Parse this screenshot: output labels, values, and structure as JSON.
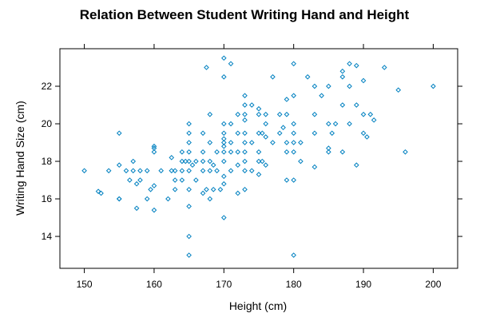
{
  "chart_data": {
    "type": "scatter",
    "title": "Relation Between Student Writing Hand and Height",
    "xlabel": "Height (cm)",
    "ylabel": "Writing Hand Size (cm)",
    "xlim": [
      146.5,
      203.5
    ],
    "ylim": [
      12.3,
      24.0
    ],
    "xticks": [
      150,
      160,
      170,
      180,
      190,
      200
    ],
    "yticks": [
      14,
      16,
      18,
      20,
      22
    ],
    "grid": false,
    "marker": "open-diamond",
    "marker_color": "#0080c0",
    "series": [
      {
        "points": [
          [
            150,
            17.5
          ],
          [
            152,
            16.4
          ],
          [
            152.4,
            16.3
          ],
          [
            153.5,
            17.5
          ],
          [
            155,
            16
          ],
          [
            155,
            16
          ],
          [
            155,
            17.8
          ],
          [
            155,
            19.5
          ],
          [
            156,
            17.5
          ],
          [
            156.5,
            17
          ],
          [
            157,
            17.5
          ],
          [
            157,
            18
          ],
          [
            157.5,
            15.5
          ],
          [
            157.5,
            16.8
          ],
          [
            158,
            17
          ],
          [
            158,
            17.5
          ],
          [
            159,
            16
          ],
          [
            159,
            17.5
          ],
          [
            159.5,
            16.5
          ],
          [
            160,
            18.5
          ],
          [
            160,
            18.7
          ],
          [
            160,
            18.8
          ],
          [
            160,
            15.4
          ],
          [
            160,
            16.7
          ],
          [
            161,
            17.5
          ],
          [
            162,
            16
          ],
          [
            162.5,
            17.5
          ],
          [
            162.5,
            18.2
          ],
          [
            163,
            17.5
          ],
          [
            163,
            17
          ],
          [
            163,
            16.5
          ],
          [
            164,
            17.5
          ],
          [
            164,
            17
          ],
          [
            164,
            18
          ],
          [
            164,
            18.5
          ],
          [
            164.5,
            18
          ],
          [
            165,
            13
          ],
          [
            165,
            14
          ],
          [
            165,
            15.6
          ],
          [
            165,
            16.5
          ],
          [
            165,
            17.5
          ],
          [
            165,
            18
          ],
          [
            165,
            18.5
          ],
          [
            165,
            19
          ],
          [
            165,
            19.5
          ],
          [
            165,
            20
          ],
          [
            165.5,
            17.8
          ],
          [
            166,
            17
          ],
          [
            166,
            18
          ],
          [
            167,
            16.3
          ],
          [
            167,
            17.5
          ],
          [
            167,
            18
          ],
          [
            167,
            18.5
          ],
          [
            167,
            19.5
          ],
          [
            167.5,
            16.5
          ],
          [
            167.5,
            23
          ],
          [
            168,
            16
          ],
          [
            168,
            17.5
          ],
          [
            168,
            18
          ],
          [
            168,
            19
          ],
          [
            168,
            20.5
          ],
          [
            168.5,
            16.5
          ],
          [
            168.5,
            17.8
          ],
          [
            169,
            17.5
          ],
          [
            169,
            18.5
          ],
          [
            169.5,
            16.5
          ],
          [
            170,
            15
          ],
          [
            170,
            16.8
          ],
          [
            170,
            17.2
          ],
          [
            170,
            18
          ],
          [
            170,
            18.5
          ],
          [
            170,
            18.8
          ],
          [
            170,
            19
          ],
          [
            170,
            19.2
          ],
          [
            170,
            19.5
          ],
          [
            170,
            20
          ],
          [
            170,
            22.5
          ],
          [
            170,
            23.5
          ],
          [
            171,
            17.5
          ],
          [
            171,
            18.5
          ],
          [
            171,
            19
          ],
          [
            171,
            20
          ],
          [
            171,
            23.2
          ],
          [
            172,
            16.3
          ],
          [
            172,
            17.8
          ],
          [
            172,
            18.5
          ],
          [
            172,
            19.5
          ],
          [
            172,
            20.5
          ],
          [
            173,
            16.5
          ],
          [
            173,
            17.5
          ],
          [
            173,
            18
          ],
          [
            173,
            18.5
          ],
          [
            173,
            19
          ],
          [
            173,
            19.5
          ],
          [
            173,
            20.2
          ],
          [
            173,
            20.5
          ],
          [
            173,
            21
          ],
          [
            173,
            21.5
          ],
          [
            174,
            17.5
          ],
          [
            174,
            19
          ],
          [
            174,
            21
          ],
          [
            175,
            17.3
          ],
          [
            175,
            18
          ],
          [
            175,
            18.5
          ],
          [
            175,
            19.5
          ],
          [
            175,
            20.5
          ],
          [
            175,
            20.8
          ],
          [
            175.5,
            18
          ],
          [
            175.5,
            19.5
          ],
          [
            176,
            17.8
          ],
          [
            176,
            19.3
          ],
          [
            176,
            20
          ],
          [
            176,
            20.5
          ],
          [
            177,
            19
          ],
          [
            177,
            22.5
          ],
          [
            178,
            19.5
          ],
          [
            178,
            20.5
          ],
          [
            178.5,
            19.8
          ],
          [
            179,
            17
          ],
          [
            179,
            18.5
          ],
          [
            179,
            19
          ],
          [
            179,
            20.5
          ],
          [
            179,
            21.3
          ],
          [
            180,
            13
          ],
          [
            180,
            17
          ],
          [
            180,
            18.5
          ],
          [
            180,
            19
          ],
          [
            180,
            19.5
          ],
          [
            180,
            20
          ],
          [
            180,
            21.5
          ],
          [
            180,
            23.2
          ],
          [
            181,
            18
          ],
          [
            181,
            19
          ],
          [
            182,
            22.5
          ],
          [
            183,
            17.7
          ],
          [
            183,
            19.5
          ],
          [
            183,
            20.5
          ],
          [
            183,
            22
          ],
          [
            184,
            21.5
          ],
          [
            185,
            18.5
          ],
          [
            185,
            18.7
          ],
          [
            185,
            20
          ],
          [
            185,
            22
          ],
          [
            185.5,
            19.5
          ],
          [
            186,
            20
          ],
          [
            187,
            18.5
          ],
          [
            187,
            21
          ],
          [
            187,
            22.5
          ],
          [
            187,
            22.8
          ],
          [
            188,
            20
          ],
          [
            188,
            22
          ],
          [
            188,
            23.2
          ],
          [
            189,
            21
          ],
          [
            189,
            23.1
          ],
          [
            189,
            17.8
          ],
          [
            190,
            22.3
          ],
          [
            190,
            20.5
          ],
          [
            190,
            19.5
          ],
          [
            190.5,
            19.3
          ],
          [
            191,
            20.5
          ],
          [
            191.5,
            20.2
          ],
          [
            193,
            23
          ],
          [
            195,
            21.8
          ],
          [
            196,
            18.5
          ],
          [
            200,
            22
          ]
        ]
      }
    ]
  }
}
